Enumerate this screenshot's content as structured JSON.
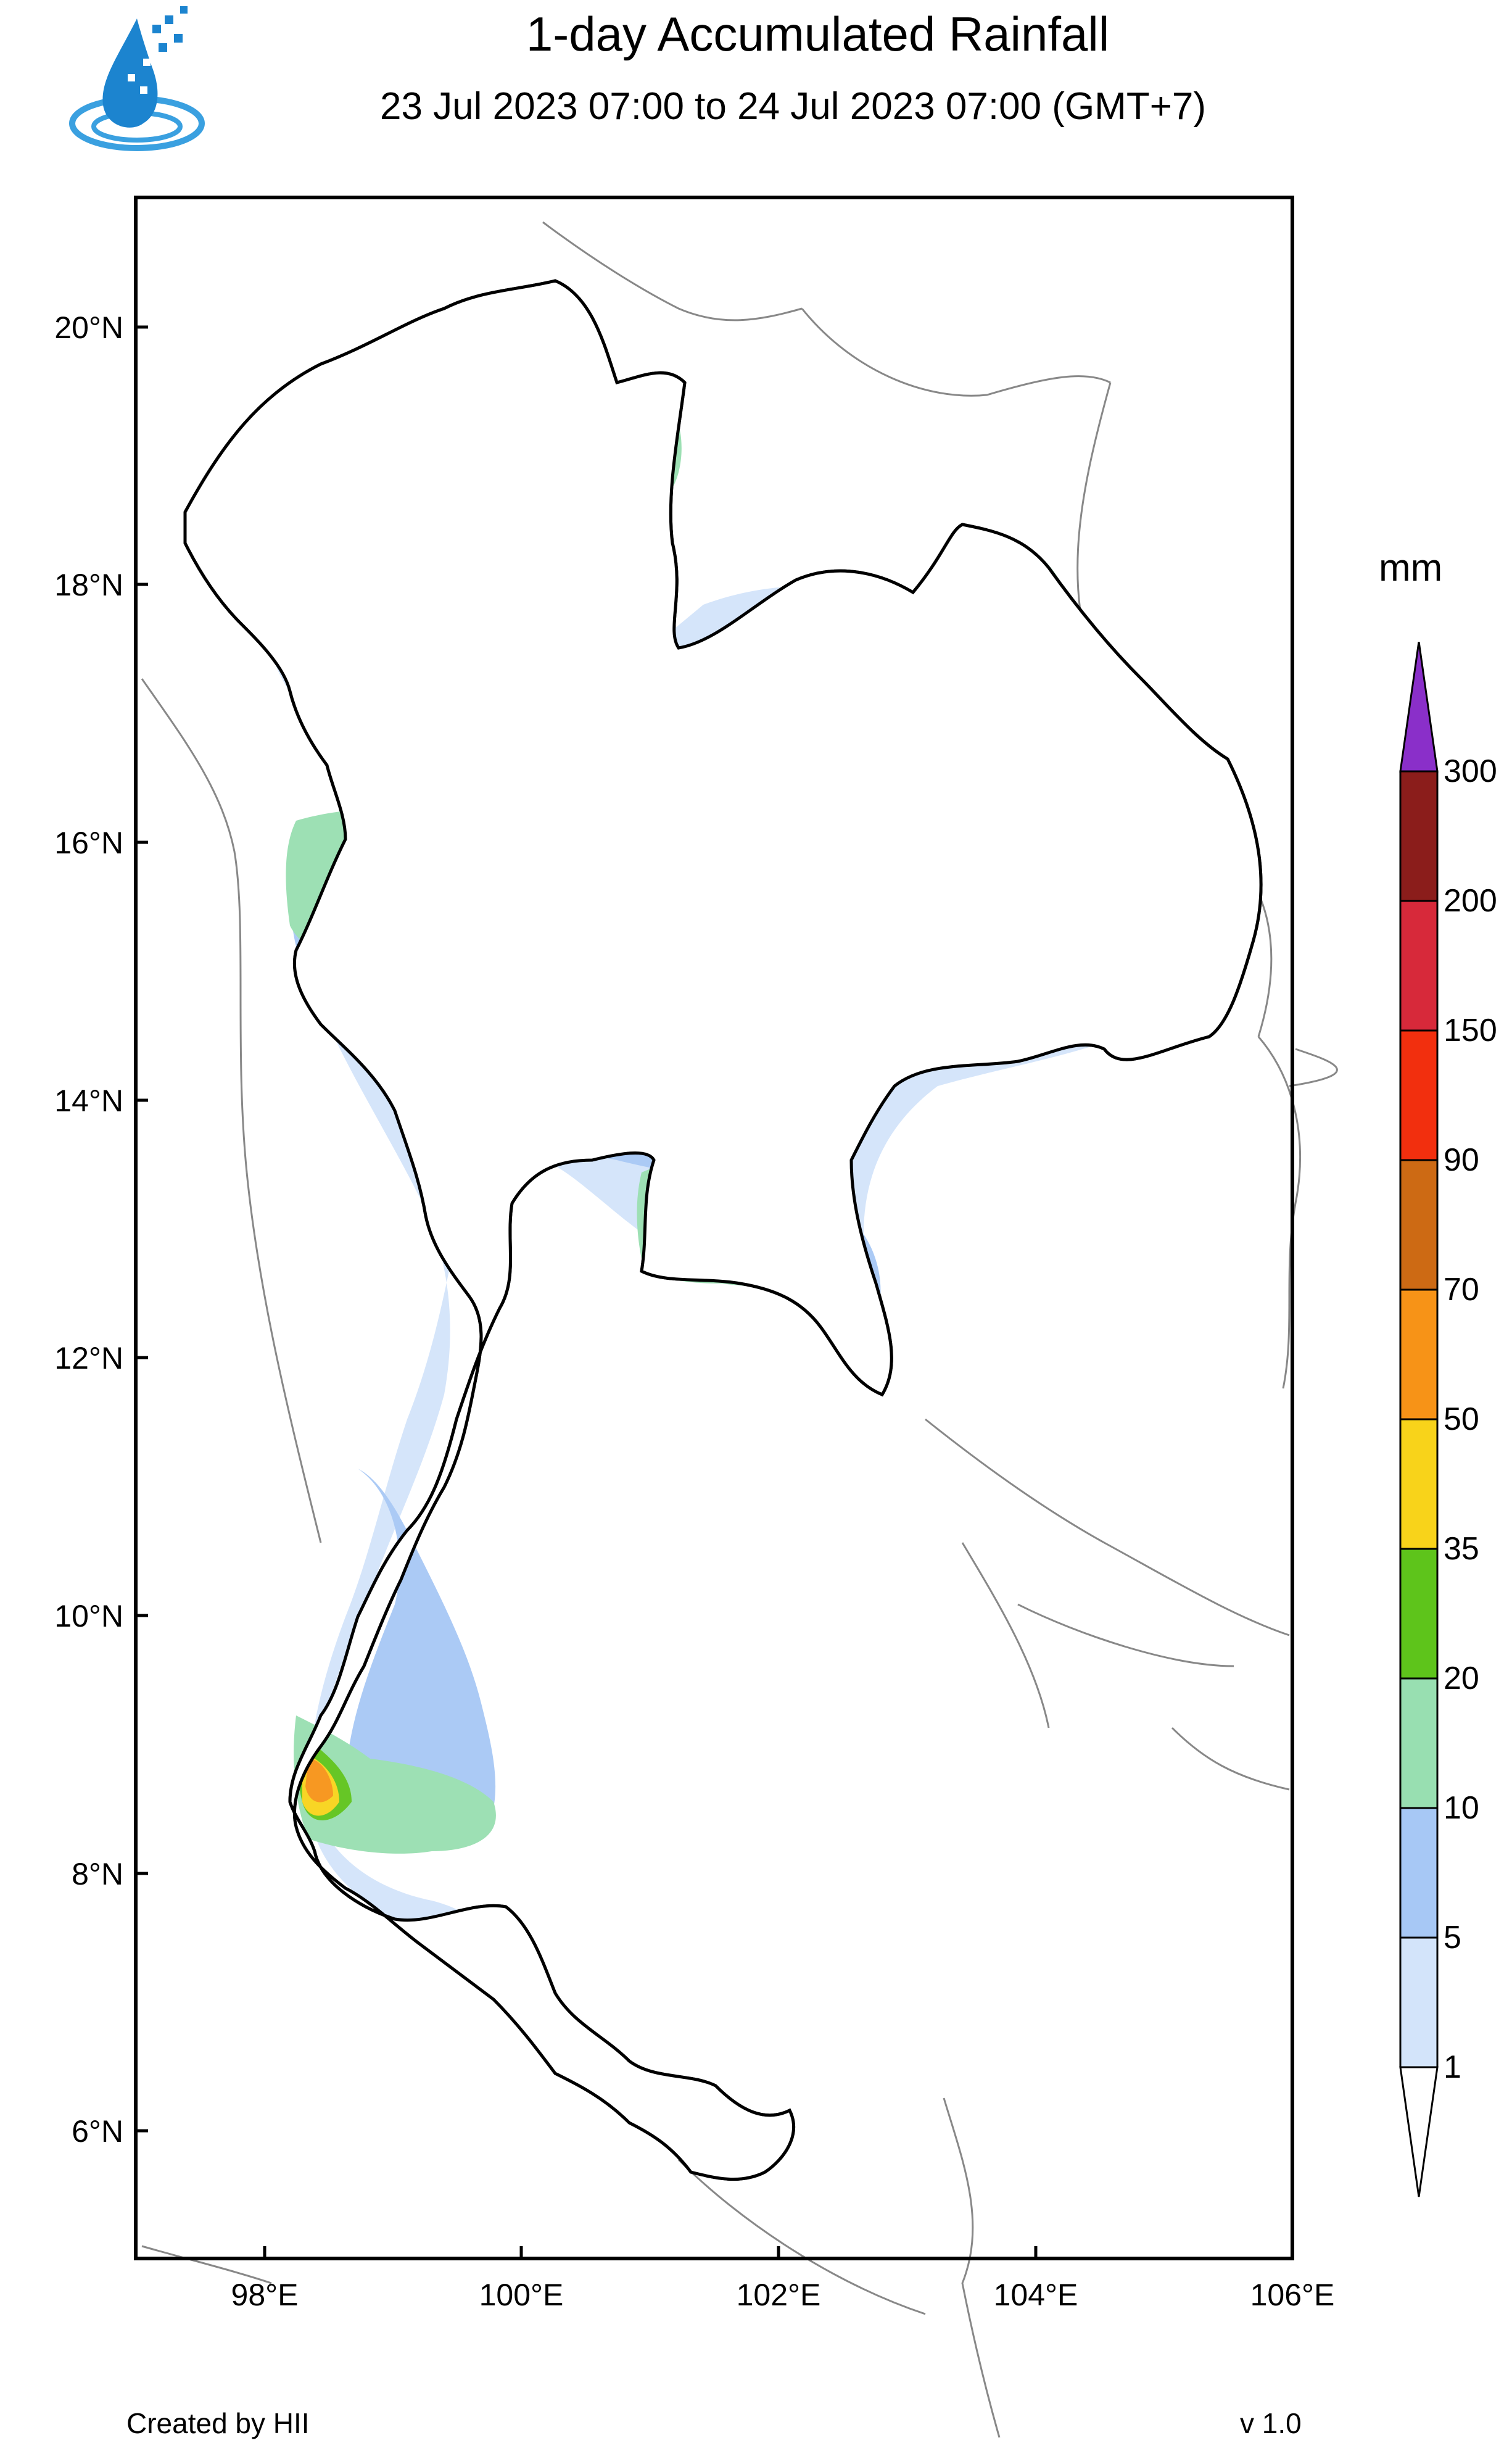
{
  "header": {
    "title": "1-day Accumulated Rainfall",
    "subtitle": "23 Jul 2023 07:00 to 24 Jul 2023 07:00 (GMT+7)"
  },
  "axes": {
    "lat_ticks": [
      "20°N",
      "18°N",
      "16°N",
      "14°N",
      "12°N",
      "10°N",
      "8°N",
      "6°N"
    ],
    "lon_ticks": [
      "98°E",
      "100°E",
      "102°E",
      "104°E",
      "106°E"
    ]
  },
  "legend": {
    "unit": "mm",
    "levels": [
      "1",
      "5",
      "10",
      "20",
      "35",
      "50",
      "70",
      "90",
      "150",
      "200",
      "300"
    ],
    "colors": [
      "#d3e4fa",
      "#a7c8f5",
      "#98dfb1",
      "#5ec41b",
      "#f8d31a",
      "#f79317",
      "#cd6a14",
      "#f22f0e",
      "#d7293a",
      "#8b1d1b",
      "#8a2fc9"
    ],
    "contour_labels": [
      "10",
      "35",
      "90"
    ]
  },
  "footer": {
    "credit": "Created by HII",
    "version": "v 1.0"
  },
  "chart_data": {
    "type": "heatmap",
    "title": "1-day Accumulated Rainfall",
    "subtitle": "23 Jul 2023 07:00 to 24 Jul 2023 07:00 (GMT+7)",
    "colorbar_unit": "mm",
    "colorbar_levels": [
      1,
      5,
      10,
      20,
      35,
      50,
      70,
      90,
      150,
      200,
      300
    ],
    "lon_range": [
      97,
      106
    ],
    "lat_range": [
      5.2,
      21
    ],
    "x_ticks": [
      98,
      100,
      102,
      104,
      106
    ],
    "y_ticks": [
      6,
      8,
      10,
      12,
      14,
      16,
      18,
      20
    ]
  }
}
